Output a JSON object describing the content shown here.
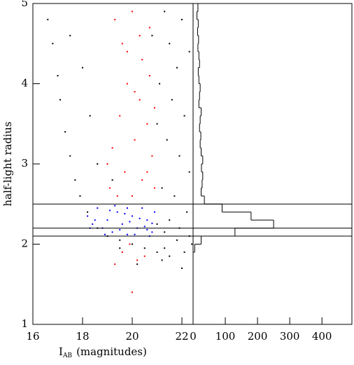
{
  "chart_data": [
    {
      "type": "scatter",
      "ylabel": "half-light radius",
      "xlabel": {
        "main": "I",
        "sub": "AB",
        "rest": "(magnitudes)"
      },
      "xlim": [
        16,
        22.45
      ],
      "ylim": [
        1,
        5
      ],
      "xticks": [
        16,
        18,
        20,
        22
      ],
      "yticks": [
        1,
        2,
        3,
        4,
        5
      ],
      "hlines": [
        2.1,
        2.2,
        2.5
      ],
      "series": [
        {
          "color": "#000000",
          "x": [
            16.6,
            16.8,
            17.0,
            17.1,
            17.3,
            17.5,
            17.7,
            17.9,
            18.2,
            18.6,
            19.0,
            19.5,
            20.0,
            20.5,
            21.0,
            21.5,
            22.0,
            21.2,
            17.5,
            18.0,
            18.3,
            18.6,
            19.2,
            21.3,
            21.5,
            21.8,
            21.1,
            21.6,
            22.1,
            21.4,
            21.9,
            22.3,
            21.2,
            21.7,
            22.2,
            21.5,
            21.9,
            22.3,
            21.3,
            21.8,
            22.4,
            21.0,
            20.8,
            22.0,
            22.3,
            21.3,
            20.2,
            19.5,
            22.1,
            21.0
          ],
          "y": [
            4.8,
            4.5,
            4.1,
            3.8,
            3.4,
            3.1,
            2.8,
            2.6,
            2.4,
            2.2,
            2.1,
            2.05,
            2.0,
            1.95,
            1.9,
            1.85,
            1.7,
            1.8,
            4.6,
            4.2,
            3.6,
            3.0,
            2.8,
            4.9,
            4.5,
            4.2,
            4.0,
            3.8,
            3.6,
            3.3,
            3.1,
            2.9,
            2.7,
            2.6,
            2.4,
            2.3,
            2.2,
            2.1,
            2.15,
            2.05,
            2.0,
            3.5,
            4.6,
            4.8,
            4.4,
            1.95,
            1.75,
            1.95,
            1.9,
            2.25
          ]
        },
        {
          "color": "#ff0000",
          "x": [
            19.3,
            19.6,
            20.0,
            20.4,
            20.7,
            19.8,
            20.3,
            20.6,
            19.5,
            20.1,
            20.8,
            19.2,
            19.7,
            20.4,
            20.9,
            19.4,
            20.0,
            20.6,
            19.1,
            19.9,
            19.6,
            20.2,
            19.3,
            20.5,
            20.1,
            20.7,
            19.8,
            20.3,
            19.0,
            20.9,
            20.0
          ],
          "y": [
            4.8,
            4.5,
            4.9,
            4.3,
            4.7,
            4.0,
            3.8,
            3.5,
            3.6,
            3.3,
            3.1,
            3.2,
            2.9,
            2.8,
            2.7,
            2.6,
            2.6,
            2.9,
            2.7,
            2.0,
            1.9,
            1.8,
            1.75,
            1.85,
            3.9,
            4.1,
            4.4,
            4.6,
            3.0,
            3.7,
            1.4
          ]
        },
        {
          "color": "#0000ff",
          "x": [
            18.2,
            18.4,
            18.6,
            18.8,
            19.0,
            19.2,
            19.4,
            19.6,
            19.8,
            20.0,
            20.2,
            20.4,
            20.6,
            20.8,
            20.9,
            18.9,
            19.3,
            19.7,
            20.1,
            20.5,
            20.7,
            18.5,
            19.1,
            19.5,
            19.9,
            20.3,
            20.8,
            18.3,
            19.8,
            20.6
          ],
          "y": [
            2.35,
            2.25,
            2.45,
            2.2,
            2.3,
            2.15,
            2.4,
            2.25,
            2.12,
            2.35,
            2.2,
            2.45,
            2.3,
            2.15,
            2.4,
            2.12,
            2.48,
            2.38,
            2.12,
            2.22,
            2.1,
            2.3,
            2.42,
            2.18,
            2.28,
            2.32,
            2.26,
            2.2,
            2.45,
            2.18
          ]
        }
      ]
    },
    {
      "type": "histogram",
      "orientation": "horizontal",
      "xlim": [
        0,
        493
      ],
      "ylim": [
        1,
        5
      ],
      "xticks": [
        0,
        100,
        200,
        300,
        400
      ],
      "bins": [
        1.9,
        2.0,
        2.1,
        2.2,
        2.3,
        2.4,
        2.5,
        2.6,
        2.7,
        2.8,
        2.9,
        3.0,
        3.1,
        3.2,
        3.3,
        3.4,
        3.5,
        3.6,
        3.7,
        3.8,
        3.9,
        4.0,
        4.1,
        4.2,
        4.3,
        4.4,
        4.5,
        4.6,
        4.7,
        4.8,
        4.9,
        5.0
      ],
      "values": [
        5,
        25,
        130,
        250,
        180,
        90,
        35,
        25,
        28,
        30,
        26,
        30,
        25,
        22,
        24,
        20,
        22,
        25,
        18,
        20,
        22,
        18,
        16,
        20,
        18,
        15,
        17,
        14,
        16,
        12,
        15
      ],
      "color": "#000000"
    }
  ]
}
